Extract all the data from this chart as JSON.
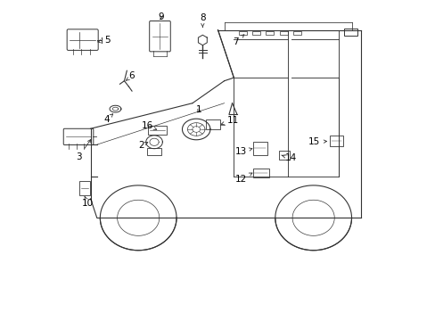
{
  "title": "",
  "bg_color": "#ffffff",
  "line_color": "#333333",
  "label_color": "#000000",
  "fig_width": 4.89,
  "fig_height": 3.6,
  "dpi": 100
}
